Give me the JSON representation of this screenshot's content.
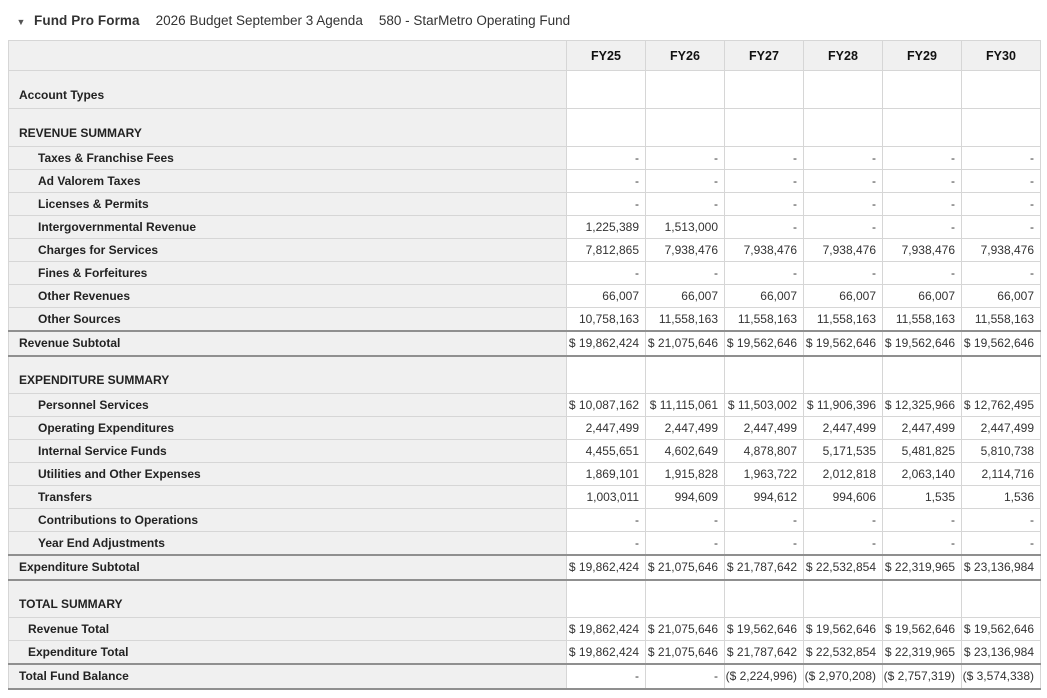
{
  "icons": {
    "collapse_caret": "▼"
  },
  "header": {
    "title": "Fund Pro Forma",
    "budget_label": "2026 Budget September 3 Agenda",
    "fund_label": "580 - StarMetro Operating Fund"
  },
  "table": {
    "columns": [
      "FY25",
      "FY26",
      "FY27",
      "FY28",
      "FY29",
      "FY30"
    ],
    "rows": [
      {
        "label": "Account Types",
        "type": "section",
        "values": [
          "",
          "",
          "",
          "",
          "",
          ""
        ]
      },
      {
        "label": "REVENUE SUMMARY",
        "type": "section",
        "values": [
          "",
          "",
          "",
          "",
          "",
          ""
        ]
      },
      {
        "label": "Taxes & Franchise Fees",
        "type": "detail",
        "values": [
          "-",
          "-",
          "-",
          "-",
          "-",
          "-"
        ]
      },
      {
        "label": "Ad Valorem Taxes",
        "type": "detail",
        "values": [
          "-",
          "-",
          "-",
          "-",
          "-",
          "-"
        ]
      },
      {
        "label": "Licenses & Permits",
        "type": "detail",
        "values": [
          "-",
          "-",
          "-",
          "-",
          "-",
          "-"
        ]
      },
      {
        "label": "Intergovernmental Revenue",
        "type": "detail",
        "values": [
          "1,225,389",
          "1,513,000",
          "-",
          "-",
          "-",
          "-"
        ]
      },
      {
        "label": "Charges for Services",
        "type": "detail",
        "values": [
          "7,812,865",
          "7,938,476",
          "7,938,476",
          "7,938,476",
          "7,938,476",
          "7,938,476"
        ]
      },
      {
        "label": "Fines & Forfeitures",
        "type": "detail",
        "values": [
          "-",
          "-",
          "-",
          "-",
          "-",
          "-"
        ]
      },
      {
        "label": "Other Revenues",
        "type": "detail",
        "values": [
          "66,007",
          "66,007",
          "66,007",
          "66,007",
          "66,007",
          "66,007"
        ]
      },
      {
        "label": "Other Sources",
        "type": "detail",
        "values": [
          "10,758,163",
          "11,558,163",
          "11,558,163",
          "11,558,163",
          "11,558,163",
          "11,558,163"
        ]
      },
      {
        "label": "Revenue Subtotal",
        "type": "subtotal",
        "values": [
          "$ 19,862,424",
          "$ 21,075,646",
          "$ 19,562,646",
          "$ 19,562,646",
          "$ 19,562,646",
          "$ 19,562,646"
        ]
      },
      {
        "label": "EXPENDITURE SUMMARY",
        "type": "section",
        "values": [
          "",
          "",
          "",
          "",
          "",
          ""
        ]
      },
      {
        "label": "Personnel Services",
        "type": "detail",
        "values": [
          "$ 10,087,162",
          "$ 11,115,061",
          "$ 11,503,002",
          "$ 11,906,396",
          "$ 12,325,966",
          "$ 12,762,495"
        ]
      },
      {
        "label": "Operating Expenditures",
        "type": "detail",
        "values": [
          "2,447,499",
          "2,447,499",
          "2,447,499",
          "2,447,499",
          "2,447,499",
          "2,447,499"
        ]
      },
      {
        "label": "Internal Service Funds",
        "type": "detail",
        "values": [
          "4,455,651",
          "4,602,649",
          "4,878,807",
          "5,171,535",
          "5,481,825",
          "5,810,738"
        ]
      },
      {
        "label": "Utilities and Other Expenses",
        "type": "detail",
        "values": [
          "1,869,101",
          "1,915,828",
          "1,963,722",
          "2,012,818",
          "2,063,140",
          "2,114,716"
        ]
      },
      {
        "label": "Transfers",
        "type": "detail",
        "values": [
          "1,003,011",
          "994,609",
          "994,612",
          "994,606",
          "1,535",
          "1,536"
        ]
      },
      {
        "label": "Contributions to Operations",
        "type": "detail",
        "values": [
          "-",
          "-",
          "-",
          "-",
          "-",
          "-"
        ]
      },
      {
        "label": "Year End Adjustments",
        "type": "detail",
        "values": [
          "-",
          "-",
          "-",
          "-",
          "-",
          "-"
        ]
      },
      {
        "label": "Expenditure Subtotal",
        "type": "subtotal",
        "values": [
          "$ 19,862,424",
          "$ 21,075,646",
          "$ 21,787,642",
          "$ 22,532,854",
          "$ 22,319,965",
          "$ 23,136,984"
        ]
      },
      {
        "label": "TOTAL SUMMARY",
        "type": "section",
        "values": [
          "",
          "",
          "",
          "",
          "",
          ""
        ]
      },
      {
        "label": "Revenue Total",
        "type": "total",
        "values": [
          "$ 19,862,424",
          "$ 21,075,646",
          "$ 19,562,646",
          "$ 19,562,646",
          "$ 19,562,646",
          "$ 19,562,646"
        ]
      },
      {
        "label": "Expenditure Total",
        "type": "total",
        "values": [
          "$ 19,862,424",
          "$ 21,075,646",
          "$ 21,787,642",
          "$ 22,532,854",
          "$ 22,319,965",
          "$ 23,136,984"
        ]
      },
      {
        "label": "Total Fund Balance",
        "type": "balance",
        "values": [
          "-",
          "-",
          "($ 2,224,996)",
          "($ 2,970,208)",
          "($ 2,757,319)",
          "($ 3,574,338)"
        ]
      }
    ]
  }
}
